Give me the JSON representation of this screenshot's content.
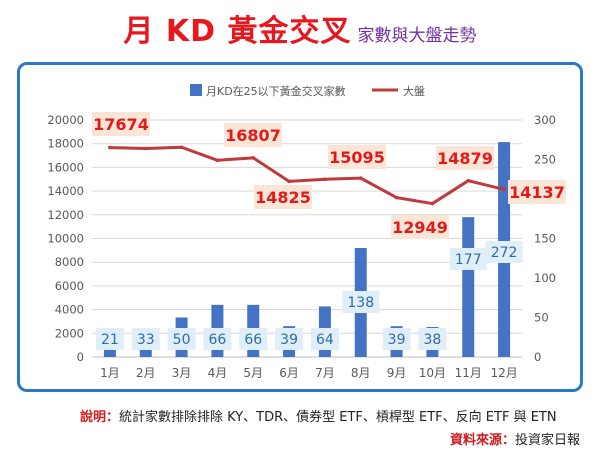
{
  "title": {
    "main": "月 KD 黃金交叉",
    "sub": "家數與大盤走勢"
  },
  "note": {
    "label": "說明：",
    "text": "統計家數排除排除 KY、TDR、債券型 ETF、槓桿型 ETF、反向 ETF 與 ETN"
  },
  "source": {
    "label": "資料來源：",
    "text": "投資家日報"
  },
  "colors": {
    "bar": "#4472c4",
    "line": "#c0393b",
    "title": "#e8161d",
    "subtitle": "#7030a0",
    "frame": "#2b79c2"
  },
  "chart_data": {
    "type": "bar+line",
    "categories": [
      "1月",
      "2月",
      "3月",
      "4月",
      "5月",
      "6月",
      "7月",
      "8月",
      "9月",
      "10月",
      "11月",
      "12月"
    ],
    "series": [
      {
        "name": "月KD在25以下黃金交叉家數",
        "type": "bar",
        "axis": "right",
        "values": [
          21,
          33,
          50,
          66,
          66,
          39,
          64,
          138,
          39,
          38,
          177,
          272
        ],
        "labels": [
          "21",
          "33",
          "50",
          "66",
          "66",
          "39",
          "64",
          "138",
          "39",
          "38",
          "177",
          "272"
        ]
      },
      {
        "name": "大盤",
        "type": "line",
        "axis": "left",
        "values": [
          17674,
          17600,
          17700,
          16600,
          16807,
          14825,
          15000,
          15095,
          13450,
          12949,
          14879,
          14137
        ],
        "labels": [
          "17674",
          "",
          "",
          "",
          "16807",
          "14825",
          "",
          "15095",
          "",
          "12949",
          "14879",
          "14137"
        ]
      }
    ],
    "y_left": {
      "min": 0,
      "max": 20000,
      "ticks": [
        "0",
        "2000",
        "4000",
        "6000",
        "8000",
        "10000",
        "12000",
        "14000",
        "16000",
        "18000",
        "20000"
      ]
    },
    "y_right": {
      "min": 0,
      "max": 300,
      "ticks": [
        "0",
        "50",
        "100",
        "150",
        "200",
        "250",
        "300"
      ]
    },
    "grid": true,
    "legend": "top"
  }
}
